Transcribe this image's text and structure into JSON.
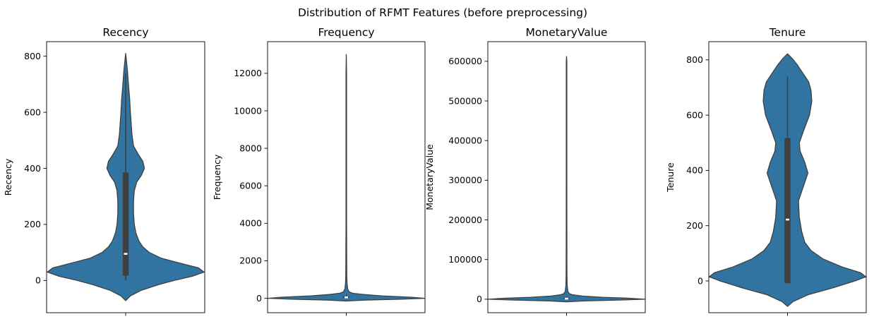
{
  "suptitle": "Distribution of RFMT Features (before preprocessing)",
  "chart_data": [
    {
      "type": "violin",
      "title": "Recency",
      "ylabel": "Recency",
      "ylim": [
        -115,
        852
      ],
      "yticks": [
        0,
        200,
        400,
        600,
        800
      ],
      "ytick_labels": [
        "0",
        "200",
        "400",
        "600",
        "800"
      ],
      "color": "#3274a1",
      "density": [
        [
          -72,
          0.0
        ],
        [
          -55,
          0.06
        ],
        [
          -35,
          0.2
        ],
        [
          -15,
          0.42
        ],
        [
          0,
          0.62
        ],
        [
          15,
          0.85
        ],
        [
          30,
          1.0
        ],
        [
          45,
          0.93
        ],
        [
          60,
          0.72
        ],
        [
          80,
          0.45
        ],
        [
          100,
          0.3
        ],
        [
          120,
          0.22
        ],
        [
          140,
          0.17
        ],
        [
          170,
          0.13
        ],
        [
          200,
          0.11
        ],
        [
          240,
          0.1
        ],
        [
          280,
          0.1
        ],
        [
          320,
          0.11
        ],
        [
          350,
          0.14
        ],
        [
          375,
          0.2
        ],
        [
          400,
          0.24
        ],
        [
          425,
          0.22
        ],
        [
          450,
          0.16
        ],
        [
          480,
          0.1
        ],
        [
          520,
          0.08
        ],
        [
          560,
          0.07
        ],
        [
          600,
          0.06
        ],
        [
          650,
          0.05
        ],
        [
          700,
          0.035
        ],
        [
          740,
          0.025
        ],
        [
          770,
          0.015
        ],
        [
          795,
          0.005
        ],
        [
          810,
          0.0
        ]
      ],
      "whisker": [
        0,
        740
      ],
      "box": [
        17,
        385
      ],
      "median": 95
    },
    {
      "type": "violin",
      "title": "Frequency",
      "ylabel": "Frequency",
      "ylim": [
        -770,
        13690
      ],
      "yticks": [
        0,
        2000,
        4000,
        6000,
        8000,
        10000,
        12000
      ],
      "ytick_labels": [
        "0",
        "2000",
        "4000",
        "6000",
        "8000",
        "10000",
        "12000"
      ],
      "color": "#3274a1",
      "density": [
        [
          -150,
          0.0
        ],
        [
          -100,
          0.22
        ],
        [
          -50,
          0.7
        ],
        [
          0,
          1.0
        ],
        [
          60,
          0.82
        ],
        [
          130,
          0.45
        ],
        [
          200,
          0.22
        ],
        [
          270,
          0.08
        ],
        [
          350,
          0.035
        ],
        [
          500,
          0.018
        ],
        [
          800,
          0.01
        ],
        [
          1200,
          0.006
        ],
        [
          2000,
          0.005
        ],
        [
          4000,
          0.004
        ],
        [
          8000,
          0.004
        ],
        [
          12000,
          0.004
        ],
        [
          13000,
          0.0
        ]
      ],
      "whisker": [
        0,
        200
      ],
      "box": [
        20,
        105
      ],
      "median": 50
    },
    {
      "type": "violin",
      "title": "MonetaryValue",
      "ylabel": "MonetaryValue",
      "ylim": [
        -34000,
        649500
      ],
      "yticks": [
        0,
        100000,
        200000,
        300000,
        400000,
        500000,
        600000
      ],
      "ytick_labels": [
        "0",
        "100000",
        "200000",
        "300000",
        "400000",
        "500000",
        "600000"
      ],
      "color": "#3274a1",
      "density": [
        [
          -6500,
          0.0
        ],
        [
          -4500,
          0.22
        ],
        [
          -2000,
          0.7
        ],
        [
          0,
          1.0
        ],
        [
          2500,
          0.8
        ],
        [
          5000,
          0.45
        ],
        [
          8000,
          0.2
        ],
        [
          11000,
          0.08
        ],
        [
          14000,
          0.035
        ],
        [
          20000,
          0.016
        ],
        [
          35000,
          0.008
        ],
        [
          60000,
          0.005
        ],
        [
          100000,
          0.0045
        ],
        [
          300000,
          0.004
        ],
        [
          600000,
          0.004
        ],
        [
          612000,
          0.0
        ]
      ],
      "whisker": [
        0,
        7000
      ],
      "box": [
        500,
        4000
      ],
      "median": 1500
    },
    {
      "type": "violin",
      "title": "Tenure",
      "ylabel": "Tenure",
      "ylim": [
        -115,
        866
      ],
      "yticks": [
        0,
        200,
        400,
        600,
        800
      ],
      "ytick_labels": [
        "0",
        "200",
        "400",
        "600",
        "800"
      ],
      "color": "#3274a1",
      "density": [
        [
          -92,
          0.0
        ],
        [
          -75,
          0.07
        ],
        [
          -50,
          0.26
        ],
        [
          -25,
          0.58
        ],
        [
          0,
          0.86
        ],
        [
          15,
          1.0
        ],
        [
          30,
          0.93
        ],
        [
          50,
          0.7
        ],
        [
          80,
          0.45
        ],
        [
          110,
          0.3
        ],
        [
          140,
          0.22
        ],
        [
          180,
          0.18
        ],
        [
          230,
          0.15
        ],
        [
          290,
          0.14
        ],
        [
          340,
          0.2
        ],
        [
          390,
          0.26
        ],
        [
          430,
          0.22
        ],
        [
          470,
          0.16
        ],
        [
          500,
          0.15
        ],
        [
          540,
          0.2
        ],
        [
          600,
          0.28
        ],
        [
          650,
          0.31
        ],
        [
          690,
          0.3
        ],
        [
          720,
          0.27
        ],
        [
          750,
          0.2
        ],
        [
          780,
          0.13
        ],
        [
          805,
          0.06
        ],
        [
          822,
          0.0
        ]
      ],
      "whisker": [
        -8,
        740
      ],
      "box": [
        -8,
        517
      ],
      "median": 222
    }
  ]
}
